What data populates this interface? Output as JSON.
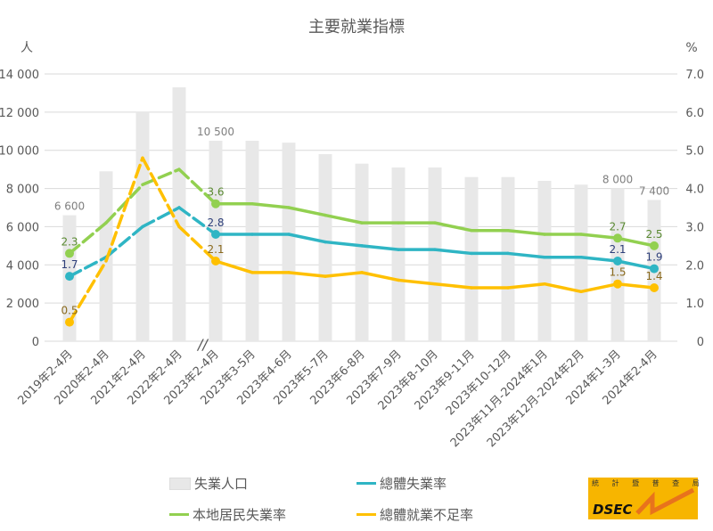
{
  "chart_data": {
    "type": "bar+line",
    "title": "主要就業指標",
    "ylabel_left": "人",
    "ylabel_right": "%",
    "ylim_left": [
      0,
      14000
    ],
    "ylim_right": [
      0,
      7.0
    ],
    "yticks_left": [
      "0",
      "2 000",
      "4 000",
      "6 000",
      "8 000",
      "10 000",
      "12 000",
      "14 000"
    ],
    "yticks_right": [
      "0",
      "1.0",
      "2.0",
      "3.0",
      "4.0",
      "5.0",
      "6.0",
      "7.0"
    ],
    "grid": true,
    "axis_break_symbol": "//",
    "categories": [
      "2019年2-4月",
      "2020年2-4月",
      "2021年2-4月",
      "2022年2-4月",
      "2023年2-4月",
      "2023年3-5月",
      "2023年4-6月",
      "2023年5-7月",
      "2023年6-8月",
      "2023年7-9月",
      "2023年8-10月",
      "2023年9-11月",
      "2023年10-12月",
      "2023年11月-2024年1月",
      "2023年12月-2024年2月",
      "2024年1-3月",
      "2024年2-4月"
    ],
    "series": [
      {
        "name": "失業人口",
        "type": "bar",
        "axis": "left",
        "color": "#e8e8e8",
        "values": [
          6600,
          8900,
          12000,
          13300,
          10500,
          10500,
          10400,
          9800,
          9300,
          9100,
          9100,
          8600,
          8600,
          8400,
          8200,
          8000,
          7400
        ],
        "labels": {
          "0": "6 600",
          "4": "10 500",
          "15": "8 000",
          "16": "7 400"
        }
      },
      {
        "name": "總體失業率",
        "type": "line",
        "axis": "right",
        "color": "#2fb5c4",
        "label_color": "#2e3f7a",
        "values": [
          1.7,
          2.2,
          3.0,
          3.5,
          2.8,
          2.8,
          2.8,
          2.6,
          2.5,
          2.4,
          2.4,
          2.3,
          2.3,
          2.2,
          2.2,
          2.1,
          1.9
        ],
        "labels": {
          "0": "1.7",
          "4": "2.8",
          "15": "2.1",
          "16": "1.9"
        }
      },
      {
        "name": "本地居民失業率",
        "type": "line",
        "axis": "right",
        "color": "#92d050",
        "label_color": "#5a8a32",
        "values": [
          2.3,
          3.1,
          4.1,
          4.5,
          3.6,
          3.6,
          3.5,
          3.3,
          3.1,
          3.1,
          3.1,
          2.9,
          2.9,
          2.8,
          2.8,
          2.7,
          2.5
        ],
        "labels": {
          "0": "2.3",
          "4": "3.6",
          "15": "2.7",
          "16": "2.5"
        }
      },
      {
        "name": "總體就業不足率",
        "type": "line",
        "axis": "right",
        "color": "#ffc000",
        "label_color": "#8a6a1e",
        "values": [
          0.5,
          2.1,
          4.8,
          3.0,
          2.1,
          1.8,
          1.8,
          1.7,
          1.8,
          1.6,
          1.5,
          1.4,
          1.4,
          1.5,
          1.3,
          1.5,
          1.4
        ],
        "labels": {
          "0": "0.5",
          "4": "2.1",
          "15": "1.5",
          "16": "1.4"
        }
      }
    ]
  },
  "logo": {
    "text_top": "統 計 暨 普 查 局",
    "text_main": "DSEC"
  }
}
